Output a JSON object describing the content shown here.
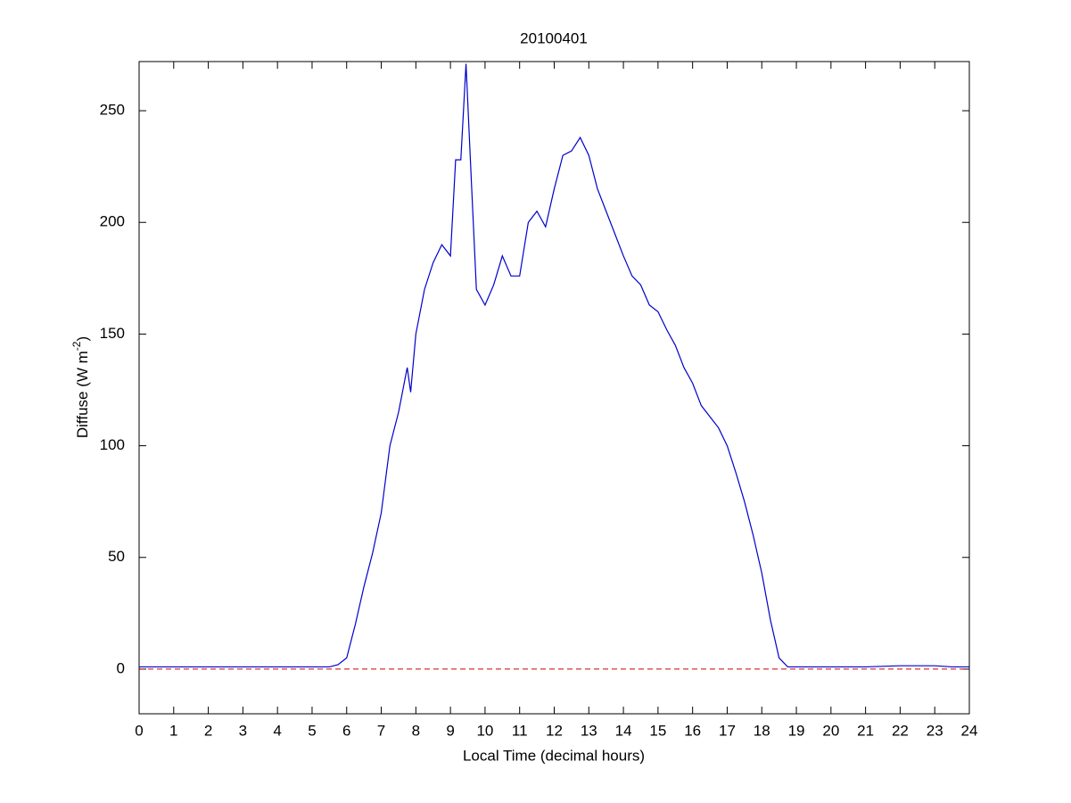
{
  "chart_data": {
    "type": "line",
    "title": "20100401",
    "xlabel": "Local Time (decimal hours)",
    "ylabel_parts": [
      "Diffuse (W m",
      "-2",
      ")"
    ],
    "xlim": [
      0,
      24
    ],
    "xticks": [
      0,
      1,
      2,
      3,
      4,
      5,
      6,
      7,
      8,
      9,
      10,
      11,
      12,
      13,
      14,
      15,
      16,
      17,
      18,
      19,
      20,
      21,
      22,
      23,
      24
    ],
    "ylim": [
      -20,
      272
    ],
    "yticks": [
      0,
      50,
      100,
      150,
      200,
      250
    ],
    "hline": {
      "value": 0,
      "color": "#cc0000"
    },
    "x": [
      0,
      1,
      2,
      3,
      4,
      5,
      5.5,
      5.75,
      6,
      6.25,
      6.5,
      6.75,
      7,
      7.25,
      7.5,
      7.75,
      7.85,
      8,
      8.25,
      8.5,
      8.75,
      9,
      9.15,
      9.3,
      9.45,
      9.6,
      9.75,
      10,
      10.25,
      10.5,
      10.75,
      11,
      11.25,
      11.5,
      11.75,
      12,
      12.25,
      12.5,
      12.75,
      13,
      13.25,
      13.5,
      13.75,
      14,
      14.25,
      14.5,
      14.75,
      15,
      15.25,
      15.5,
      15.75,
      16,
      16.25,
      16.5,
      16.75,
      17,
      17.25,
      17.5,
      17.75,
      18,
      18.25,
      18.5,
      18.75,
      19,
      20,
      21,
      22,
      23,
      23.5,
      24
    ],
    "series": [
      {
        "name": "Diffuse",
        "color": "#0000cc",
        "values": [
          1,
          1,
          1,
          1,
          1,
          1,
          1,
          2,
          5,
          20,
          37,
          52,
          70,
          100,
          115,
          135,
          124,
          150,
          170,
          182,
          190,
          185,
          228,
          228,
          271,
          220,
          170,
          163,
          172,
          185,
          176,
          176,
          200,
          205,
          198,
          215,
          230,
          232,
          238,
          230,
          215,
          205,
          195,
          185,
          176,
          172,
          163,
          160,
          152,
          145,
          135,
          128,
          118,
          113,
          108,
          100,
          88,
          75,
          60,
          43,
          22,
          5,
          1,
          1,
          1,
          1,
          1.5,
          1.5,
          1,
          1
        ]
      }
    ]
  }
}
